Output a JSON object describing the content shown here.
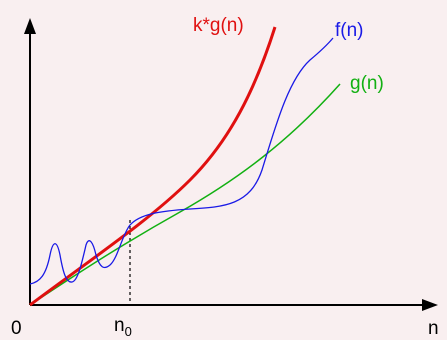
{
  "diagram": {
    "origin_label": "0",
    "x_axis_label": "n",
    "threshold_label": {
      "base": "n",
      "subscript": "0"
    },
    "curves": [
      {
        "id": "kg",
        "label": "k*g(n)",
        "color": "#e01010"
      },
      {
        "id": "f",
        "label": "f(n)",
        "color": "#1a1ae6"
      },
      {
        "id": "g",
        "label": "g(n)",
        "color": "#12b012"
      }
    ],
    "axis_color": "#000000",
    "background": "#f9eff0"
  }
}
